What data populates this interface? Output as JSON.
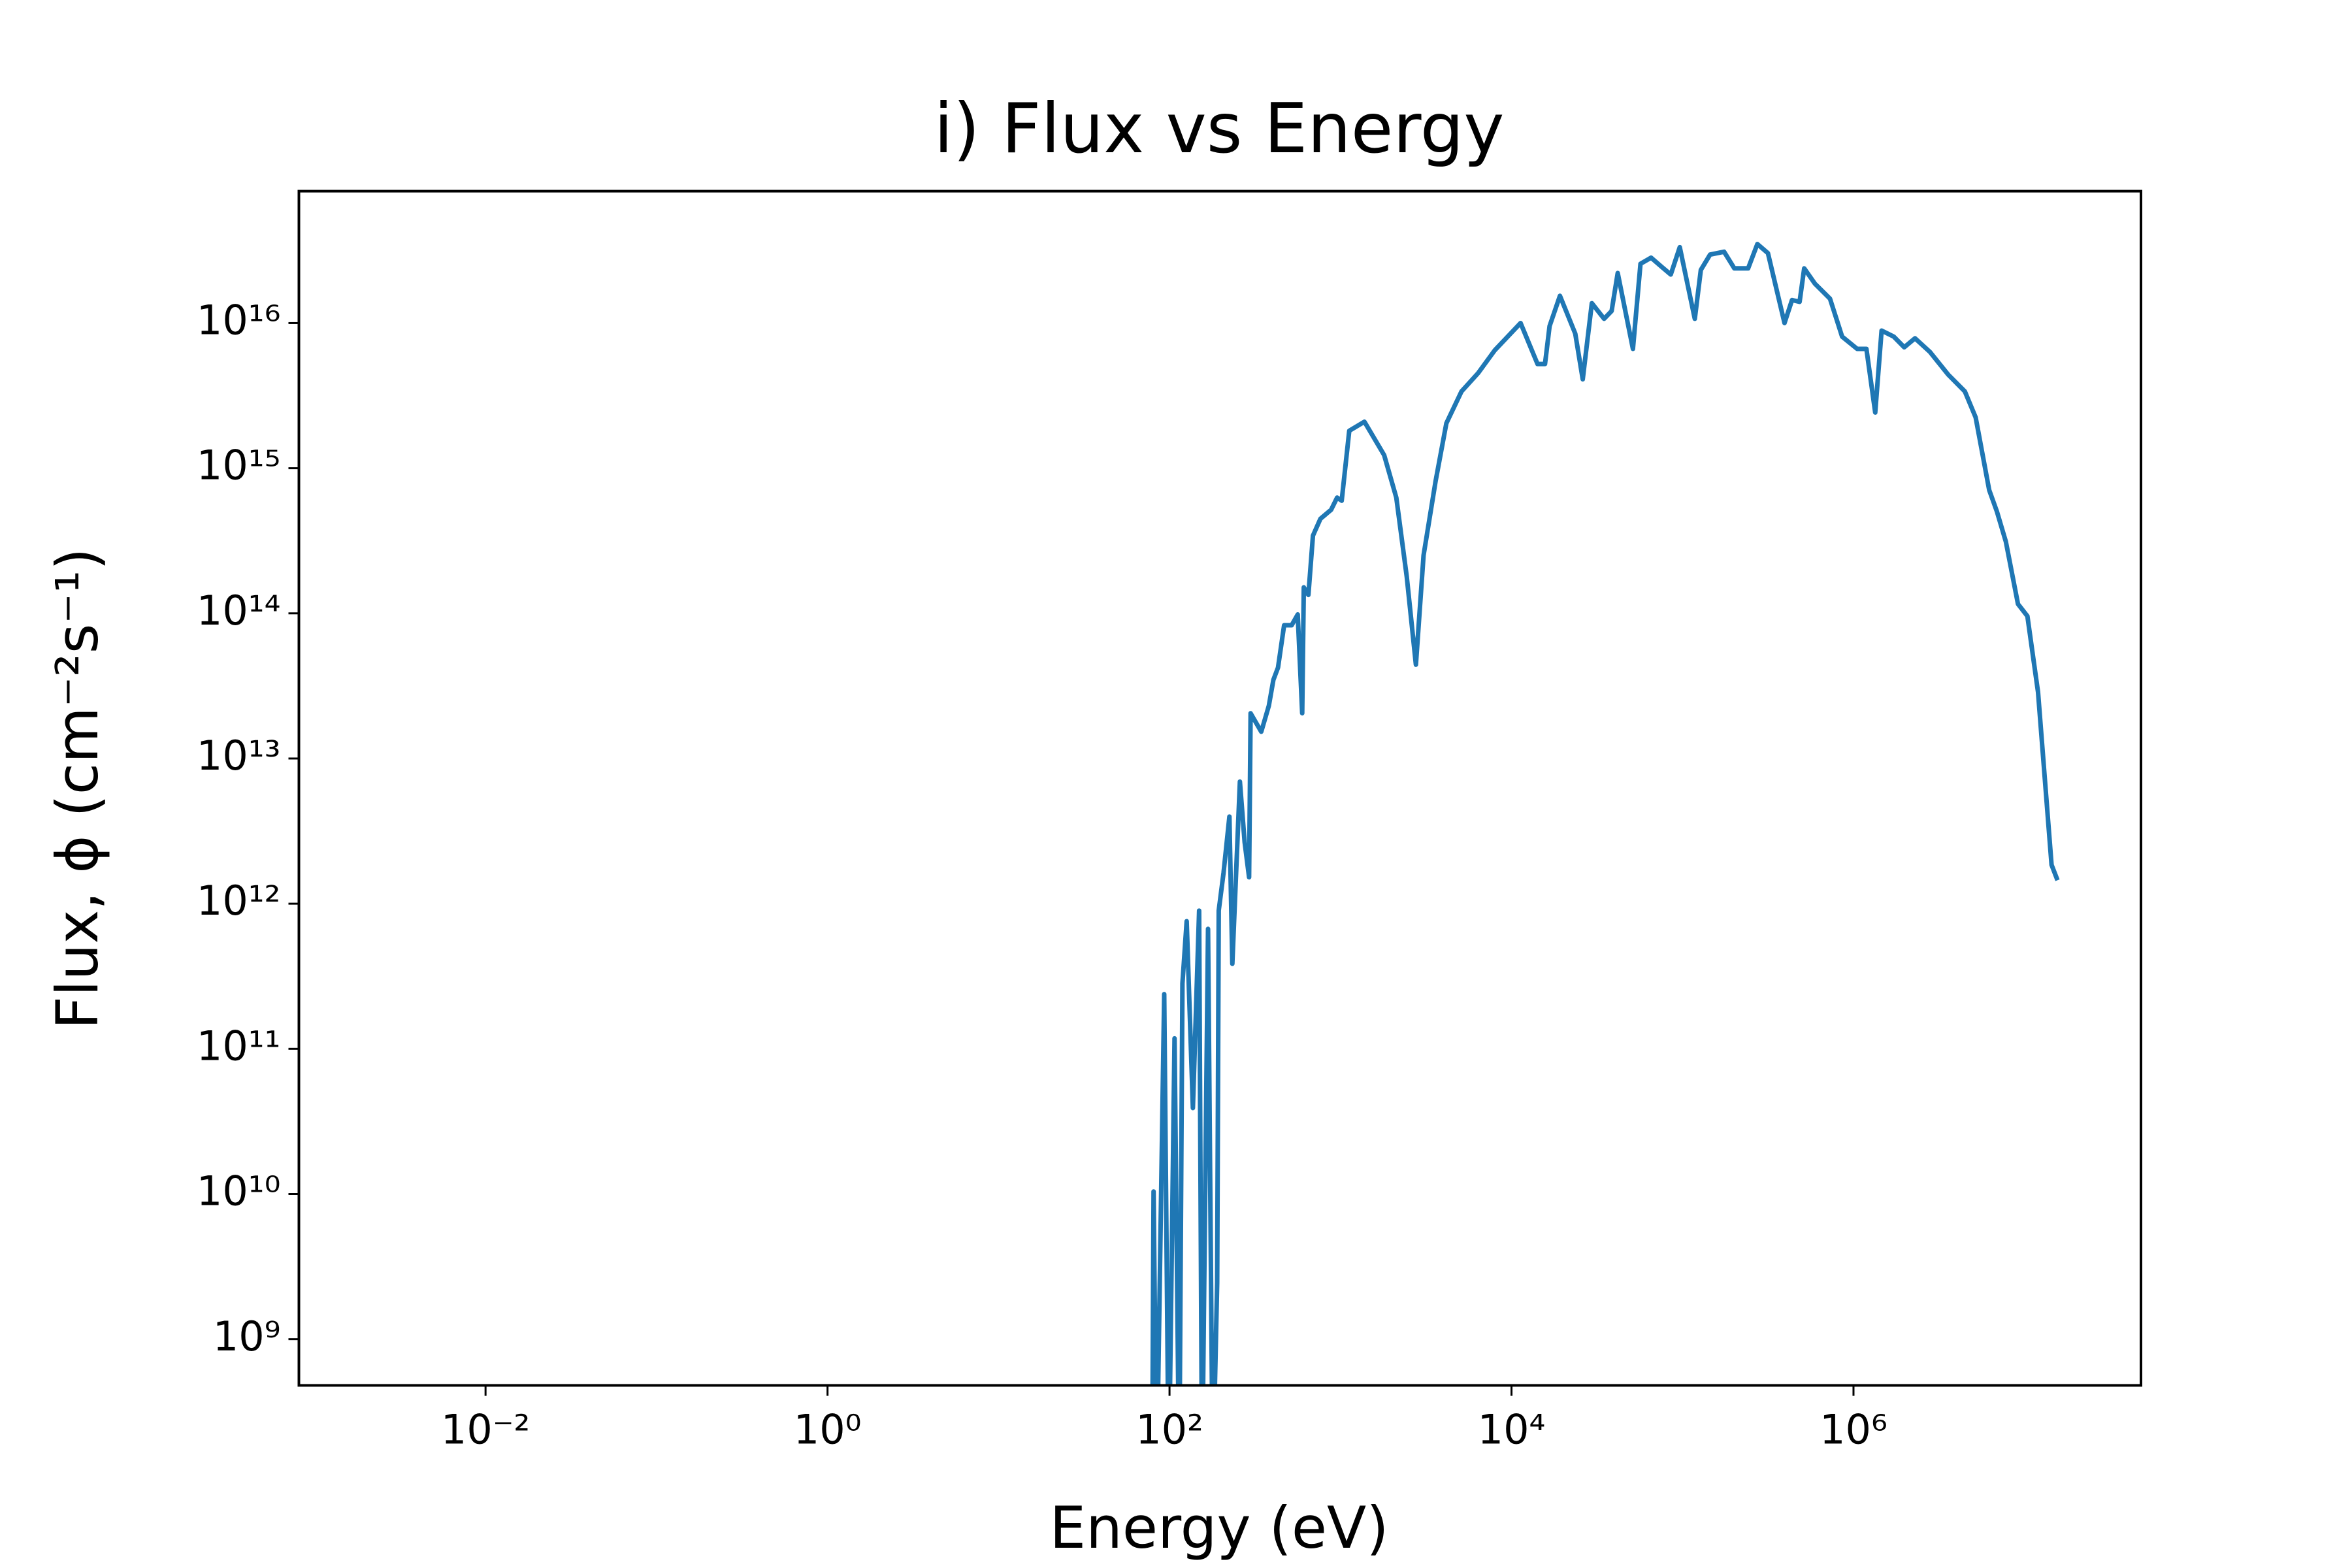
{
  "chart_data": {
    "type": "line",
    "title": "i) Flux vs Energy",
    "xlabel": "Energy (eV)",
    "ylabel": "Flux, ϕ (cm⁻²s⁻¹)",
    "xscale": "log",
    "yscale": "log",
    "grid": false,
    "xlim": [
      0.00081,
      48000000
    ],
    "ylim": [
      480000000,
      81000000000000000
    ],
    "xticks": [
      {
        "value": 0.01,
        "label": "10⁻²"
      },
      {
        "value": 1,
        "label": "10⁰"
      },
      {
        "value": 100,
        "label": "10²"
      },
      {
        "value": 10000,
        "label": "10⁴"
      },
      {
        "value": 1000000,
        "label": "10⁶"
      }
    ],
    "yticks": [
      {
        "value": 1000000000,
        "label": "10⁹"
      },
      {
        "value": 10000000000,
        "label": "10¹⁰"
      },
      {
        "value": 100000000000,
        "label": "10¹¹"
      },
      {
        "value": 1000000000000,
        "label": "10¹²"
      },
      {
        "value": 10000000000000,
        "label": "10¹³"
      },
      {
        "value": 100000000000000,
        "label": "10¹⁴"
      },
      {
        "value": 1000000000000000,
        "label": "10¹⁵"
      },
      {
        "value": 10000000000000000,
        "label": "10¹⁶"
      }
    ],
    "x": [
      79.1,
      80.7,
      84.1,
      93.1,
      99.0,
      107,
      114,
      119,
      126,
      137,
      149,
      155,
      168,
      179,
      190,
      194,
      207,
      224,
      233,
      258,
      275,
      292,
      298,
      344,
      381,
      405,
      431,
      468,
      518,
      562,
      597,
      610,
      649,
      690,
      763,
      881,
      955,
      1016,
      1125,
      1380,
      1800,
      2120,
      2440,
      2760,
      3060,
      3600,
      4160,
      5100,
      6380,
      7980,
      11300,
      14200,
      15700,
      16700,
      19200,
      23600,
      26100,
      29500,
      34800,
      38500,
      41800,
      51300,
      56800,
      65500,
      75500,
      85400,
      96400,
      118000,
      128000,
      145000,
      175000,
      201000,
      242000,
      274000,
      316000,
      395000,
      437000,
      484000,
      515000,
      594000,
      729000,
      858000,
      1050000,
      1190000,
      1340000,
      1460000,
      1720000,
      1980000,
      2290000,
      2800000,
      3580000,
      4480000,
      5180000,
      6220000,
      6890000,
      7780000,
      9160000,
      10400000,
      12000000,
      14400000,
      15600000
    ],
    "series": [
      {
        "name": "Flux",
        "color": "#1f77b4",
        "values": [
          100000000,
          10400000000,
          100000000,
          238000000000,
          100000000,
          118000000000,
          100000000,
          282000000000,
          757000000000,
          39100000000,
          895000000000,
          100000000,
          670000000000,
          100000000,
          2450000000,
          895000000000,
          1630000000000,
          3980000000000,
          385000000000,
          6930000000000,
          2650000000000,
          1520000000000,
          20500000000000,
          15300000000000,
          23100000000000,
          34800000000000,
          42300000000000,
          82800000000000,
          82800000000000,
          98200000000000,
          20500000000000,
          151000000000000,
          134000000000000,
          343000000000000,
          448000000000000,
          517000000000000,
          627000000000000,
          597000000000000,
          1810000000000000,
          2090000000000000,
          1230000000000000,
          627000000000000,
          179000000000000,
          44300000000000,
          251000000000000,
          817000000000000,
          2040000000000000,
          3380000000000000,
          4520000000000000,
          6490000000000000,
          10000000000000000,
          5220000000000000,
          5220000000000000,
          9530000000000000,
          15400000000000000,
          8450000000000000,
          4100000000000000,
          13700000000000000,
          10700000000000000,
          12100000000000000,
          22100000000000000,
          6640000000000000,
          25600000000000000,
          28200000000000000,
          24400000000000000,
          21600000000000000,
          33300000000000000,
          10700000000000000,
          23200000000000000,
          29600000000000000,
          31000000000000000,
          23800000000000000,
          23800000000000000,
          35000000000000000,
          30300000000000000,
          10000000000000000,
          14400000000000000,
          14000000000000000,
          23800000000000000,
          18700000000000000,
          14700000000000000,
          8060000000000000,
          6640000000000000,
          6640000000000000,
          2420000000000000,
          8870000000000000,
          8060000000000000,
          6810000000000000,
          7850000000000000,
          6320000000000000,
          4410000000000000,
          3380000000000000,
          2240000000000000,
          706000000000000,
          505000000000000,
          312000000000000,
          116000000000000,
          95700000000000,
          28700000000000,
          1850000000000,
          1450000000000
        ]
      }
    ]
  }
}
